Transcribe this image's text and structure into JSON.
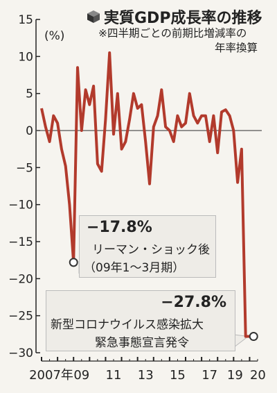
{
  "title": "実質GDP成長率の推移",
  "subtitle_lines": [
    "※四半期ごとの前期比増減率の",
    "年率換算"
  ],
  "chart_data": {
    "type": "line",
    "unit": "(%)",
    "ylim": [
      -30,
      15
    ],
    "yticks": [
      15,
      10,
      5,
      0,
      -5,
      -10,
      -15,
      -20,
      -25,
      -30
    ],
    "ytick_labels": [
      "15",
      "10",
      "5",
      "0",
      "−5",
      "−10",
      "−15",
      "−20",
      "−25",
      "−30"
    ],
    "xticks": [
      {
        "year": 2007,
        "label": "2007年"
      },
      {
        "year": 2009,
        "label": "09"
      },
      {
        "year": 2011,
        "label": "11"
      },
      {
        "year": 2013,
        "label": "13"
      },
      {
        "year": 2015,
        "label": "15"
      },
      {
        "year": 2017,
        "label": "17"
      },
      {
        "year": 2019,
        "label": "19"
      },
      {
        "year": 2020,
        "label": "20"
      }
    ],
    "x_start": 2007.0,
    "x_end": 2020.5,
    "series": [
      {
        "x": [
          2007.0,
          2007.25,
          2007.5,
          2007.75,
          2008.0,
          2008.25,
          2008.5,
          2008.75,
          2009.0,
          2009.25,
          2009.5,
          2009.75,
          2010.0,
          2010.25,
          2010.5,
          2010.75,
          2011.0,
          2011.25,
          2011.5,
          2011.75,
          2012.0,
          2012.25,
          2012.5,
          2012.75,
          2013.0,
          2013.25,
          2013.5,
          2013.75,
          2014.0,
          2014.25,
          2014.5,
          2014.75,
          2015.0,
          2015.25,
          2015.5,
          2015.75,
          2016.0,
          2016.25,
          2016.5,
          2016.75,
          2017.0,
          2017.25,
          2017.5,
          2017.75,
          2018.0,
          2018.25,
          2018.5,
          2018.75,
          2019.0,
          2019.25,
          2019.5,
          2019.75,
          2020.0,
          2020.25
        ],
        "values": [
          3.0,
          0.5,
          -1.5,
          2.0,
          1.0,
          -2.5,
          -4.8,
          -10.0,
          -17.8,
          8.5,
          0.0,
          5.5,
          3.5,
          6.0,
          -4.5,
          -5.5,
          1.5,
          10.5,
          -0.5,
          5.0,
          -2.5,
          -1.5,
          1.5,
          5.0,
          3.0,
          3.5,
          -1.5,
          -7.2,
          0.5,
          2.0,
          5.5,
          0.5,
          0.0,
          -1.5,
          2.0,
          0.5,
          1.0,
          5.0,
          2.0,
          1.0,
          2.0,
          2.0,
          -1.5,
          2.0,
          -3.0,
          2.5,
          2.8,
          2.0,
          0.0,
          -7.0,
          -2.5,
          -27.8,
          -27.8,
          -27.8
        ]
      }
    ],
    "annotations": [
      {
        "value_label": "−17.8%",
        "lines": [
          "リーマン・ショック後",
          "（09年1〜3月期）"
        ],
        "x": 2009.0,
        "y": -17.8
      },
      {
        "value_label": "−27.8%",
        "lines": [
          "新型コロナウイルス感染拡大",
          "緊急事態宣言発令"
        ],
        "x": 2020.25,
        "y": -27.8
      }
    ],
    "colors": {
      "line": "#b23a2c",
      "axis": "#222222",
      "zero": "#555555",
      "marker_fill": "#ffffff"
    },
    "title_icon": "cube-icon"
  }
}
